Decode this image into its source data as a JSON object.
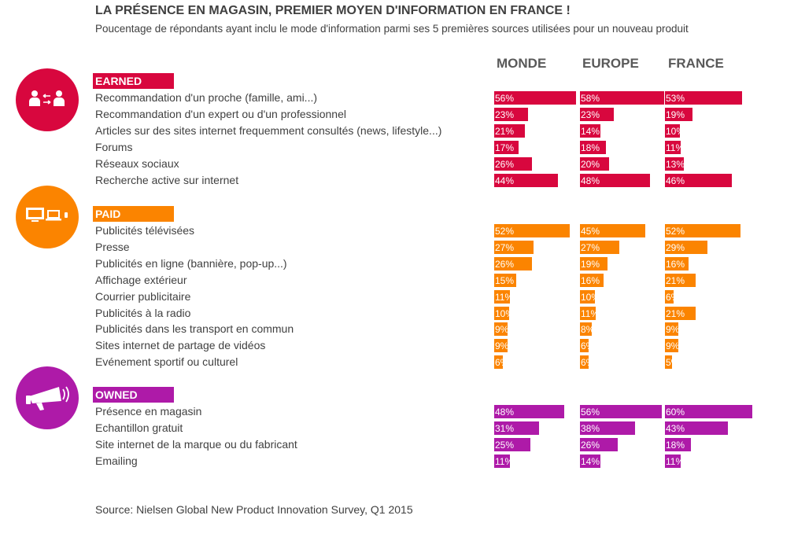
{
  "title": "LA PRÉSENCE EN MAGASIN, PREMIER MOYEN D'INFORMATION EN FRANCE !",
  "subtitle": "Poucentage de répondants ayant inclu le mode d'information parmi ses 5 premières sources utilisées pour un nouveau produit",
  "source": "Source: Nielsen Global New Product Innovation Survey, Q1 2015",
  "colors": {
    "earned": "#d8073e",
    "paid": "#fb8400",
    "owned": "#ae1aa8"
  },
  "icons": {
    "earned": "people-exchange-icon",
    "paid": "tv-devices-icon",
    "owned": "megaphone-icon"
  },
  "chart_data": {
    "type": "bar",
    "orientation": "horizontal",
    "columns": [
      "MONDE",
      "EUROPE",
      "FRANCE"
    ],
    "value_unit": "%",
    "groups": [
      {
        "name": "EARNED",
        "rows": [
          {
            "label": "Recommandation d'un proche (famille, ami...)",
            "values": [
              56,
              58,
              53
            ]
          },
          {
            "label": "Recommandation d'un expert ou d'un professionnel",
            "values": [
              23,
              23,
              19
            ]
          },
          {
            "label": "Articles sur des sites internet frequemment consultés (news, lifestyle...)",
            "values": [
              21,
              14,
              10
            ]
          },
          {
            "label": "Forums",
            "values": [
              17,
              18,
              11
            ]
          },
          {
            "label": "Réseaux sociaux",
            "values": [
              26,
              20,
              13
            ]
          },
          {
            "label": "Recherche active sur internet",
            "values": [
              44,
              48,
              46
            ]
          }
        ]
      },
      {
        "name": "PAID",
        "rows": [
          {
            "label": "Publicités télévisées",
            "values": [
              52,
              45,
              52
            ]
          },
          {
            "label": "Presse",
            "values": [
              27,
              27,
              29
            ]
          },
          {
            "label": "Publicités en ligne (bannière, pop-up...)",
            "values": [
              26,
              19,
              16
            ]
          },
          {
            "label": "Affichage extérieur",
            "values": [
              15,
              16,
              21
            ]
          },
          {
            "label": "Courrier publicitaire",
            "values": [
              11,
              10,
              6
            ]
          },
          {
            "label": "Publicités à la radio",
            "values": [
              10,
              11,
              21
            ]
          },
          {
            "label": "Publicités dans les transport en commun",
            "values": [
              9,
              8,
              9
            ]
          },
          {
            "label": "Sites internet de partage de vidéos",
            "values": [
              9,
              6,
              9
            ]
          },
          {
            "label": "Evénement sportif ou culturel",
            "values": [
              6,
              6,
              5
            ]
          }
        ]
      },
      {
        "name": "OWNED",
        "rows": [
          {
            "label": "Présence en magasin",
            "values": [
              48,
              56,
              60
            ]
          },
          {
            "label": "Echantillon gratuit",
            "values": [
              31,
              38,
              43
            ]
          },
          {
            "label": "Site internet de la marque ou du fabricant",
            "values": [
              25,
              26,
              18
            ]
          },
          {
            "label": "Emailing",
            "values": [
              11,
              14,
              11
            ]
          }
        ]
      }
    ]
  }
}
